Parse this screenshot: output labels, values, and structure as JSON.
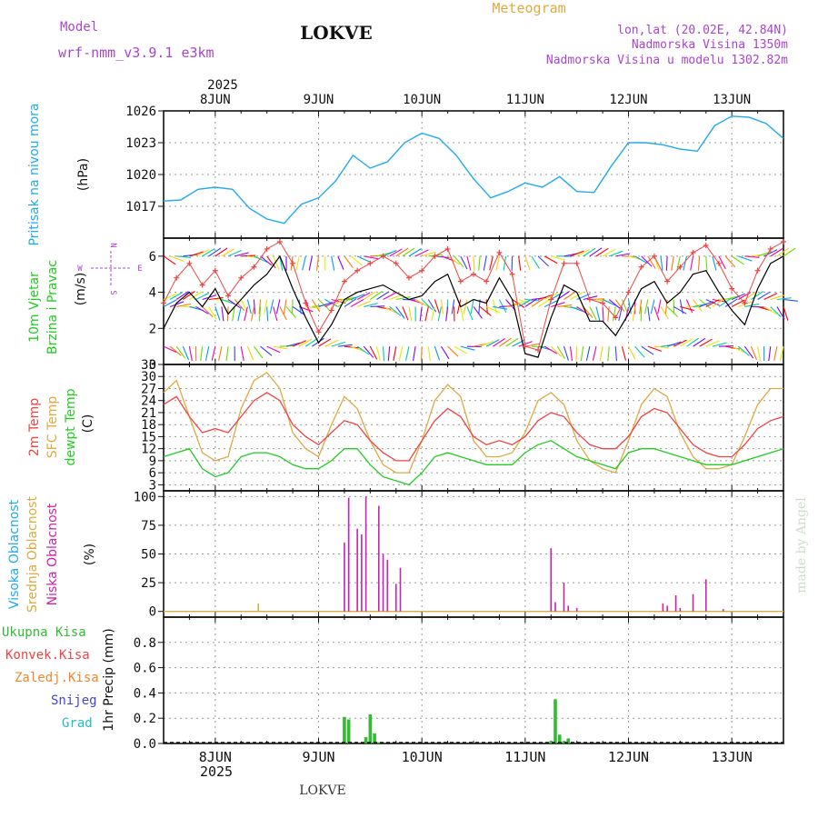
{
  "header": {
    "model_label": "Model",
    "model_name": "wrf-nmm_v3.9.1 e3km",
    "station": "LOKVE",
    "title": "Meteogram",
    "coords": "lon,lat (20.02E, 42.84N)",
    "altitude": "Nadmorska Visina 1350m",
    "model_altitude": "Nadmorska Visina u modelu 1302.82m",
    "footer_station": "LOKVE",
    "watermark": "made by Angel"
  },
  "colors": {
    "pressure": "#22aaee",
    "temp2m": "#ee4444",
    "sfc_temp": "#ddaa44",
    "dewpt": "#22cc22",
    "high_cloud": "#22aaee",
    "mid_cloud": "#ddaa44",
    "low_cloud": "#cc22aa",
    "precip_total": "#33bb33",
    "convective": "#ee4444",
    "freezing": "#ee8833",
    "snow": "#4444dd",
    "hail": "#22bbbb",
    "gust": "#ee4444",
    "wind": "#000000",
    "compass": "#aa44cc"
  },
  "chart_data": {
    "type": "meteogram",
    "x_axis": {
      "year_top": "2025",
      "year_bottom": "2025",
      "day_labels": [
        "8JUN",
        "9JUN",
        "10JUN",
        "11JUN",
        "12JUN",
        "13JUN"
      ],
      "day_positions_hours": [
        12,
        36,
        60,
        84,
        108,
        132
      ],
      "range_hours": [
        0,
        144
      ]
    },
    "panels": [
      {
        "id": "pressure",
        "type": "line",
        "ylabel": "Pritisak na nivou mora",
        "unit": "(hPa)",
        "ylim": [
          1014,
          1026
        ],
        "ticks": [
          1017,
          1020,
          1023,
          1026
        ],
        "series": [
          {
            "name": "Pritisak na nivou mora",
            "x": [
              0,
              4,
              8,
              12,
              16,
              20,
              24,
              28,
              32,
              36,
              40,
              44,
              48,
              52,
              56,
              60,
              64,
              68,
              72,
              76,
              80,
              84,
              88,
              92,
              96,
              100,
              104,
              108,
              112,
              116,
              120,
              124,
              128,
              132,
              136,
              140,
              144
            ],
            "y": [
              1017.5,
              1017.6,
              1018.6,
              1018.8,
              1018.6,
              1016.8,
              1015.8,
              1015.4,
              1017.2,
              1017.8,
              1019.4,
              1021.8,
              1020.6,
              1021.2,
              1023.0,
              1023.9,
              1023.4,
              1021.8,
              1019.6,
              1017.8,
              1018.4,
              1019.2,
              1018.8,
              1019.8,
              1018.4,
              1018.3,
              1020.8,
              1023.0,
              1023.0,
              1022.8,
              1022.4,
              1022.2,
              1024.6,
              1025.5,
              1025.4,
              1024.8,
              1023.4
            ]
          }
        ]
      },
      {
        "id": "wind",
        "type": "line+barbs",
        "ylabel": [
          "10m Vjetar",
          "Brzina i Pravac"
        ],
        "unit": "(m/s)",
        "compass_labels": {
          "north": "N",
          "south": "S",
          "east": "E",
          "west": "W"
        },
        "ylim": [
          0,
          7
        ],
        "ticks": [
          0,
          2,
          4,
          6
        ],
        "series": [
          {
            "name": "Wind speed",
            "x": [
              0,
              3,
              6,
              9,
              12,
              15,
              18,
              21,
              24,
              27,
              30,
              33,
              36,
              39,
              42,
              45,
              48,
              51,
              54,
              57,
              60,
              63,
              66,
              69,
              72,
              75,
              78,
              81,
              84,
              87,
              90,
              93,
              96,
              99,
              102,
              105,
              108,
              111,
              114,
              117,
              120,
              123,
              126,
              129,
              132,
              135,
              138,
              141,
              144
            ],
            "y": [
              2.0,
              3.4,
              4.0,
              3.2,
              4.2,
              2.8,
              3.6,
              4.4,
              5.0,
              6.0,
              4.2,
              2.6,
              1.2,
              2.2,
              3.6,
              4.0,
              4.2,
              4.4,
              4.0,
              3.6,
              3.8,
              4.6,
              5.0,
              3.2,
              3.6,
              3.4,
              4.8,
              3.6,
              0.6,
              0.4,
              2.6,
              4.4,
              4.0,
              2.4,
              2.4,
              1.6,
              2.8,
              4.2,
              4.6,
              3.4,
              4.0,
              5.0,
              5.2,
              4.0,
              3.0,
              2.2,
              4.2,
              5.6,
              6.0
            ]
          },
          {
            "name": "Gust",
            "x": [
              0,
              3,
              6,
              9,
              12,
              15,
              18,
              21,
              24,
              27,
              30,
              33,
              36,
              39,
              42,
              45,
              48,
              51,
              54,
              57,
              60,
              63,
              66,
              69,
              72,
              75,
              78,
              81,
              84,
              87,
              90,
              93,
              96,
              99,
              102,
              105,
              108,
              111,
              114,
              117,
              120,
              123,
              126,
              129,
              132,
              135,
              138,
              141,
              144
            ],
            "y": [
              3.4,
              4.8,
              5.6,
              4.4,
              5.2,
              3.8,
              4.8,
              5.4,
              6.4,
              6.8,
              5.6,
              3.4,
              1.8,
              3.0,
              4.6,
              5.2,
              5.6,
              6.0,
              5.6,
              4.8,
              5.2,
              6.0,
              6.4,
              4.6,
              5.0,
              4.6,
              6.2,
              5.0,
              1.0,
              0.8,
              3.6,
              5.6,
              5.6,
              3.6,
              3.4,
              2.6,
              4.0,
              5.4,
              6.0,
              4.6,
              5.4,
              6.2,
              6.6,
              5.6,
              4.2,
              3.4,
              5.2,
              6.4,
              6.8
            ]
          }
        ]
      },
      {
        "id": "temperature",
        "type": "line",
        "ylabel": [
          "2m Temp",
          "SFC Temp",
          "dewpt Temp"
        ],
        "unit": "(C)",
        "ylim": [
          1.5,
          33
        ],
        "ticks": [
          3,
          6,
          9,
          12,
          15,
          18,
          21,
          24,
          27,
          30,
          33
        ],
        "series": [
          {
            "name": "2m Temp",
            "x": [
              0,
              3,
              6,
              9,
              12,
              15,
              18,
              21,
              24,
              27,
              30,
              33,
              36,
              39,
              42,
              45,
              48,
              51,
              54,
              57,
              60,
              63,
              66,
              69,
              72,
              75,
              78,
              81,
              84,
              87,
              90,
              93,
              96,
              99,
              102,
              105,
              108,
              111,
              114,
              117,
              120,
              123,
              126,
              129,
              132,
              135,
              138,
              141,
              144
            ],
            "y": [
              23,
              25,
              20,
              16,
              17,
              16,
              20,
              24,
              26,
              24,
              18,
              15,
              13,
              16,
              19,
              18,
              14,
              11,
              9,
              9,
              14,
              19,
              22,
              20,
              15,
              13,
              14,
              13,
              15,
              19,
              21,
              20,
              16,
              13,
              12,
              12,
              15,
              20,
              22,
              21,
              17,
              13,
              11,
              10,
              10,
              13,
              17,
              19,
              20
            ]
          },
          {
            "name": "SFC Temp",
            "x": [
              0,
              3,
              6,
              9,
              12,
              15,
              18,
              21,
              24,
              27,
              30,
              33,
              36,
              39,
              42,
              45,
              48,
              51,
              54,
              57,
              60,
              63,
              66,
              69,
              72,
              75,
              78,
              81,
              84,
              87,
              90,
              93,
              96,
              99,
              102,
              105,
              108,
              111,
              114,
              117,
              120,
              123,
              126,
              129,
              132,
              135,
              138,
              141,
              144
            ],
            "y": [
              26,
              29,
              20,
              11,
              9,
              10,
              22,
              29,
              31,
              27,
              16,
              12,
              10,
              18,
              25,
              22,
              14,
              8,
              6,
              6,
              14,
              24,
              28,
              25,
              14,
              10,
              10,
              11,
              16,
              24,
              26,
              23,
              14,
              9,
              7,
              6,
              14,
              23,
              27,
              25,
              16,
              10,
              7,
              7,
              8,
              15,
              23,
              27,
              27
            ]
          },
          {
            "name": "dewpt Temp",
            "x": [
              0,
              3,
              6,
              9,
              12,
              15,
              18,
              21,
              24,
              27,
              30,
              33,
              36,
              39,
              42,
              45,
              48,
              51,
              54,
              57,
              60,
              63,
              66,
              69,
              72,
              75,
              78,
              81,
              84,
              87,
              90,
              93,
              96,
              99,
              102,
              105,
              108,
              111,
              114,
              117,
              120,
              123,
              126,
              129,
              132,
              135,
              138,
              141,
              144
            ],
            "y": [
              10,
              11,
              12,
              7,
              5,
              6,
              10,
              11,
              11,
              10,
              8,
              7,
              7,
              9,
              12,
              12,
              8,
              5,
              4,
              3,
              6,
              10,
              11,
              10,
              9,
              8,
              8,
              8,
              11,
              13,
              14,
              12,
              10,
              9,
              8,
              7,
              11,
              12,
              12,
              11,
              10,
              9,
              8,
              8,
              8,
              9,
              10,
              11,
              12
            ]
          }
        ]
      },
      {
        "id": "cloud",
        "type": "bar",
        "ylabel": [
          "Visoka Oblacnost",
          "Srednja Oblacnost",
          "Niska Oblacnost"
        ],
        "unit": "(%)",
        "ylim": [
          -5,
          105
        ],
        "ticks": [
          0,
          25,
          50,
          75,
          100
        ],
        "series": [
          {
            "name": "Niska Oblacnost",
            "x": [
              42,
              43,
              45,
              46,
              47,
              50,
              51,
              52,
              54,
              55,
              90,
              91,
              93,
              94,
              96,
              116,
              117,
              119,
              120,
              123,
              126,
              130
            ],
            "y": [
              60,
              99,
              72,
              67,
              100,
              92,
              50,
              45,
              24,
              38,
              55,
              8,
              25,
              5,
              3,
              7,
              5,
              14,
              3,
              15,
              28,
              2
            ]
          },
          {
            "name": "Srednja Oblacnost",
            "x": [
              22
            ],
            "y": [
              7
            ]
          },
          {
            "name": "Visoka Oblacnost",
            "x": [],
            "y": []
          }
        ]
      },
      {
        "id": "precip",
        "type": "bar",
        "ylabel": "1hr Precip (mm)",
        "legend": [
          "Ukupna Kisa",
          "Konvek.Kisa",
          "Zaledj.Kisa",
          "Snijeg",
          "Grad"
        ],
        "ylim": [
          0,
          1.0
        ],
        "ticks": [
          0,
          0.2,
          0.4,
          0.6,
          0.8
        ],
        "series": [
          {
            "name": "Ukupna Kisa",
            "x": [
              42,
              43,
              47,
              48,
              49,
              50,
              90,
              91,
              92,
              93,
              94
            ],
            "y": [
              0.21,
              0.19,
              0.05,
              0.23,
              0.08,
              0.01,
              0.02,
              0.35,
              0.07,
              0.02,
              0.04
            ]
          }
        ]
      }
    ]
  }
}
